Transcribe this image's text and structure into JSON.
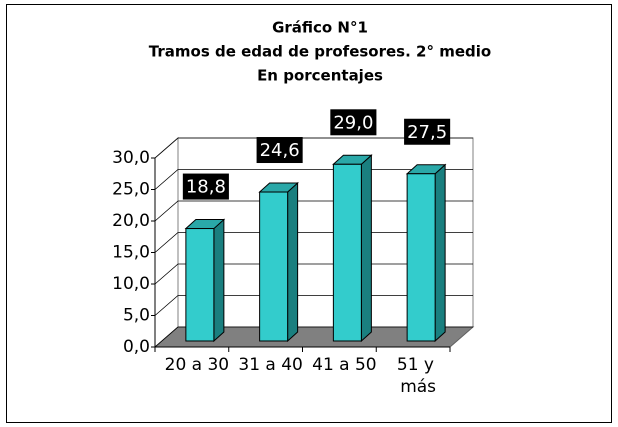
{
  "chart_data": {
    "type": "bar3d",
    "title": [
      "Gráfico N°1",
      "Tramos de edad de profesores. 2° medio",
      "En porcentajes"
    ],
    "categories": [
      "20 a 30",
      "31 a 40",
      "41 a 50",
      "51 y más"
    ],
    "values": [
      18.8,
      24.6,
      29.0,
      27.5
    ],
    "value_labels": [
      "18,8",
      "24,6",
      "29,0",
      "27,5"
    ],
    "color": "#33cccc",
    "ylim": [
      0,
      30
    ],
    "yticks": [
      {
        "value": 0,
        "label": "0,0"
      },
      {
        "value": 5,
        "label": "5,0"
      },
      {
        "value": 10,
        "label": "10,0"
      },
      {
        "value": 15,
        "label": "15,0"
      },
      {
        "value": 20,
        "label": "20,0"
      },
      {
        "value": 25,
        "label": "25,0"
      },
      {
        "value": 30,
        "label": "30,0"
      }
    ],
    "grid": true
  }
}
